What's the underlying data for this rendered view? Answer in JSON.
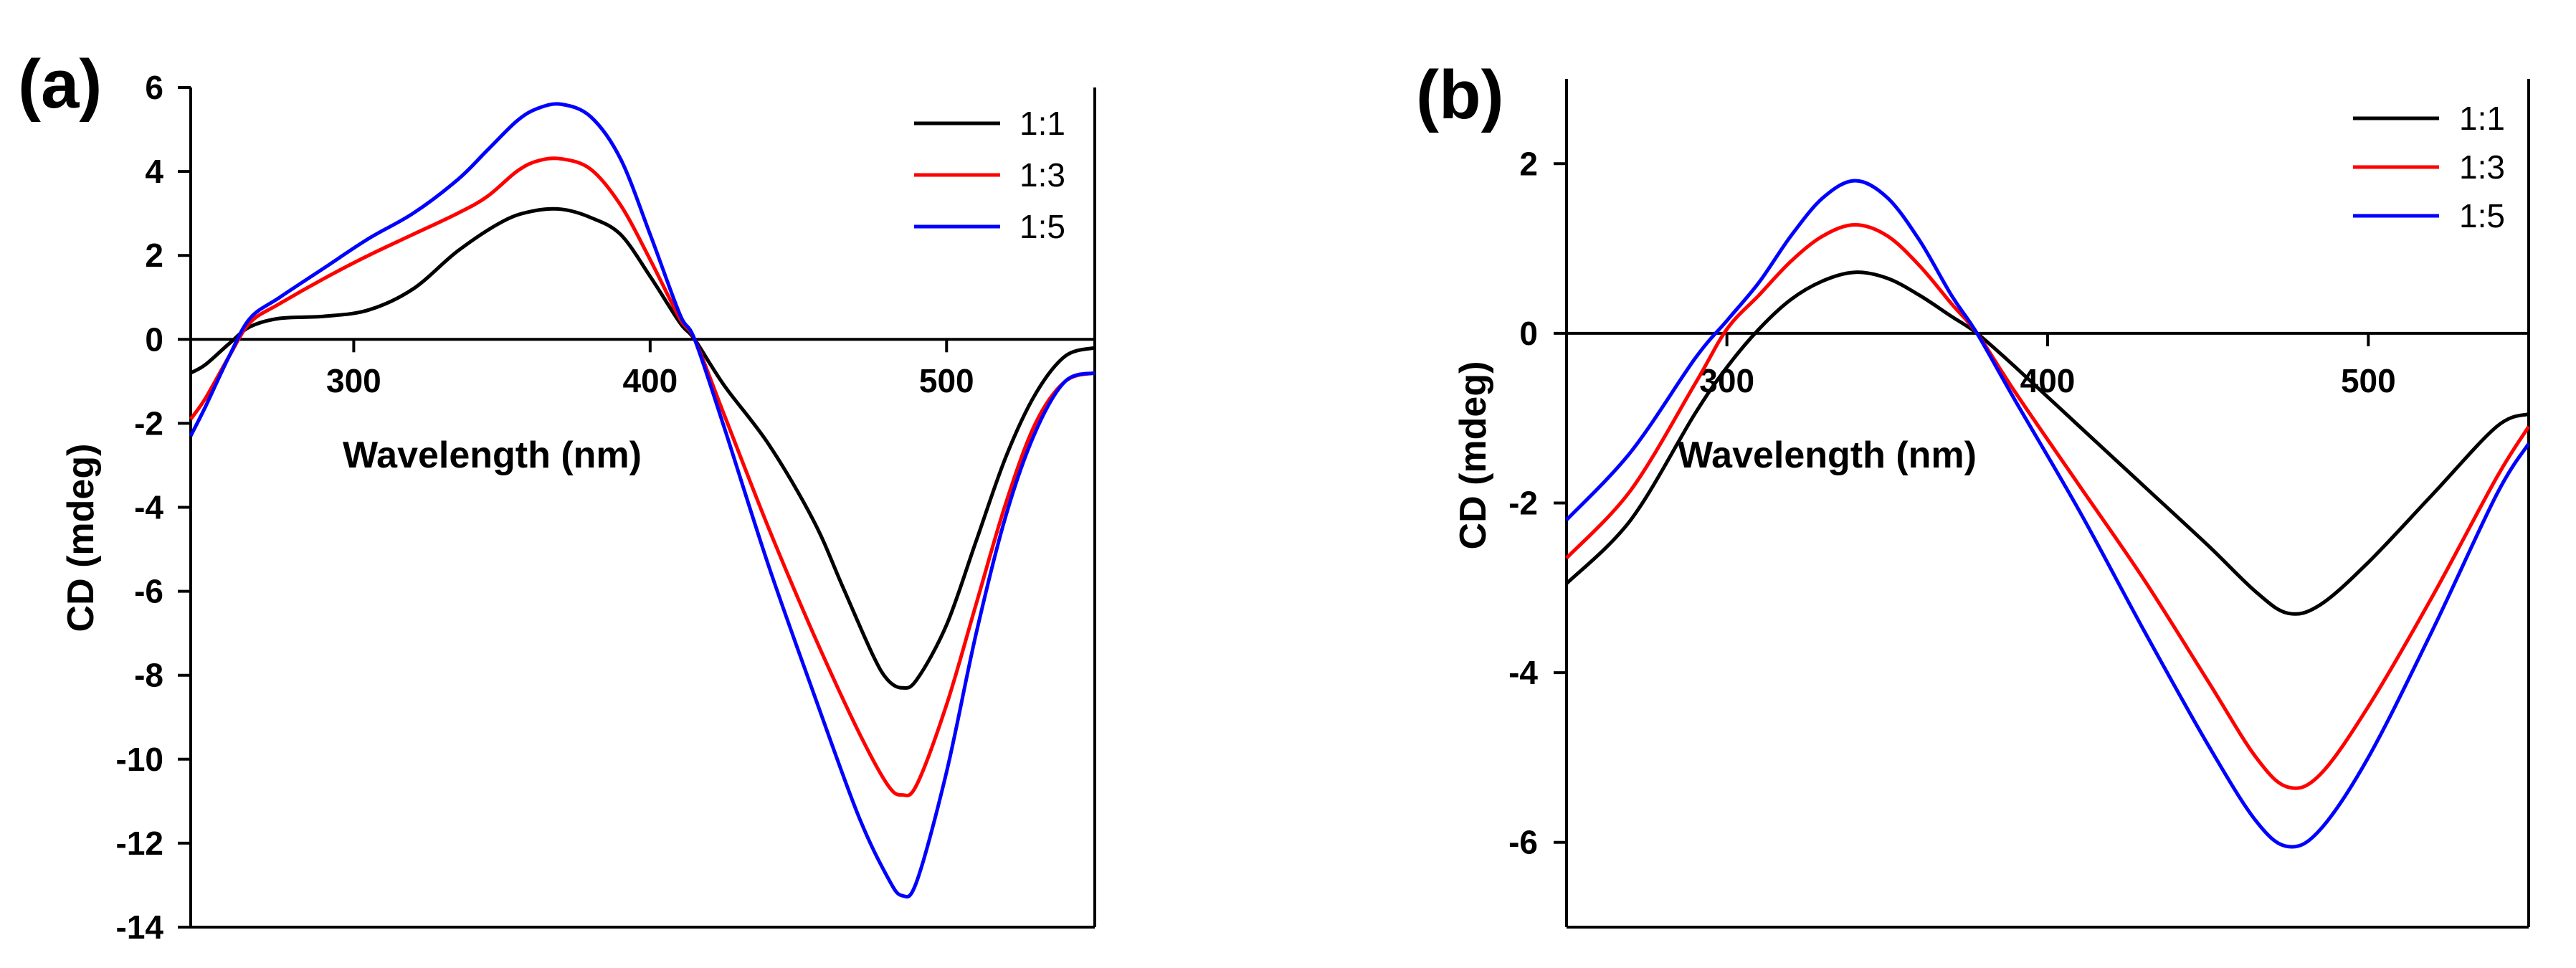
{
  "chart_data": [
    {
      "panel_label": "(a)",
      "type": "line",
      "xlabel": "Wavelength (nm)",
      "ylabel": "CD (mdeg)",
      "xlim": [
        245,
        550
      ],
      "ylim": [
        -14,
        6
      ],
      "xticks": [
        300,
        400,
        500
      ],
      "yticks": [
        -14,
        -12,
        -10,
        -8,
        -6,
        -4,
        -2,
        0,
        2,
        4,
        6
      ],
      "legend_position": "top-right",
      "series": [
        {
          "name": "1:1",
          "color": "#000000",
          "x": [
            245,
            250,
            258,
            265,
            275,
            290,
            305,
            320,
            335,
            350,
            360,
            370,
            380,
            390,
            400,
            410,
            415,
            425,
            440,
            455,
            465,
            475,
            480,
            485,
            490,
            500,
            510,
            520,
            530,
            540,
            550
          ],
          "y": [
            -0.8,
            -0.6,
            -0.1,
            0.3,
            0.5,
            0.55,
            0.7,
            1.2,
            2.1,
            2.8,
            3.05,
            3.1,
            2.9,
            2.5,
            1.5,
            0.4,
            0,
            -1.1,
            -2.5,
            -4.3,
            -5.9,
            -7.5,
            -8.1,
            -8.3,
            -8.1,
            -6.8,
            -4.8,
            -2.8,
            -1.3,
            -0.4,
            -0.2
          ]
        },
        {
          "name": "1:3",
          "color": "#ff0000",
          "x": [
            245,
            250,
            258,
            265,
            275,
            290,
            305,
            320,
            335,
            345,
            355,
            362,
            370,
            380,
            390,
            400,
            410,
            415,
            425,
            440,
            455,
            470,
            480,
            485,
            490,
            500,
            510,
            520,
            530,
            540,
            550
          ],
          "y": [
            -1.9,
            -1.4,
            -0.4,
            0.4,
            0.85,
            1.45,
            2.0,
            2.5,
            3.0,
            3.4,
            4.0,
            4.25,
            4.3,
            4.05,
            3.2,
            1.9,
            0.5,
            0,
            -1.8,
            -4.5,
            -7.0,
            -9.3,
            -10.6,
            -10.85,
            -10.6,
            -8.7,
            -6.3,
            -3.9,
            -2.0,
            -1.0,
            -0.8
          ]
        },
        {
          "name": "1:5",
          "color": "#0000ff",
          "x": [
            245,
            250,
            258,
            265,
            275,
            290,
            305,
            320,
            335,
            345,
            355,
            362,
            370,
            380,
            390,
            400,
            410,
            415,
            425,
            440,
            455,
            470,
            480,
            485,
            490,
            500,
            510,
            520,
            530,
            540,
            550
          ],
          "y": [
            -2.3,
            -1.6,
            -0.4,
            0.5,
            1.0,
            1.7,
            2.4,
            3.0,
            3.8,
            4.5,
            5.2,
            5.5,
            5.6,
            5.3,
            4.3,
            2.5,
            0.6,
            0,
            -2.1,
            -5.4,
            -8.4,
            -11.3,
            -12.8,
            -13.25,
            -12.9,
            -10.3,
            -7.0,
            -4.2,
            -2.2,
            -1.0,
            -0.8
          ]
        }
      ]
    },
    {
      "panel_label": "(b)",
      "type": "line",
      "xlabel": "Wavelength (nm)",
      "ylabel": "CD (mdeg)",
      "xlim": [
        250,
        550
      ],
      "ylim": [
        -7,
        3
      ],
      "xticks": [
        300,
        400,
        500
      ],
      "yticks": [
        -6,
        -4,
        -2,
        0,
        2
      ],
      "legend_position": "top-right",
      "series": [
        {
          "name": "1:1",
          "color": "#000000",
          "x": [
            250,
            270,
            290,
            300,
            310,
            320,
            330,
            340,
            350,
            360,
            370,
            378,
            390,
            410,
            430,
            450,
            465,
            475,
            485,
            500,
            520,
            540,
            550
          ],
          "y": [
            -2.95,
            -2.2,
            -0.95,
            -0.4,
            0.05,
            0.4,
            0.62,
            0.72,
            0.65,
            0.45,
            0.2,
            0,
            -0.4,
            -1.1,
            -1.8,
            -2.5,
            -3.05,
            -3.3,
            -3.2,
            -2.7,
            -1.9,
            -1.1,
            -0.95
          ]
        },
        {
          "name": "1:3",
          "color": "#ff0000",
          "x": [
            250,
            270,
            290,
            300,
            310,
            320,
            330,
            340,
            350,
            360,
            370,
            378,
            390,
            410,
            430,
            450,
            465,
            475,
            485,
            500,
            520,
            540,
            550
          ],
          "y": [
            -2.65,
            -1.85,
            -0.6,
            0.05,
            0.45,
            0.85,
            1.15,
            1.28,
            1.15,
            0.8,
            0.35,
            0,
            -0.7,
            -1.8,
            -2.9,
            -4.1,
            -5.0,
            -5.35,
            -5.2,
            -4.4,
            -3.1,
            -1.7,
            -1.1
          ]
        },
        {
          "name": "1:5",
          "color": "#0000ff",
          "x": [
            250,
            270,
            290,
            300,
            310,
            320,
            330,
            340,
            350,
            360,
            370,
            378,
            390,
            410,
            430,
            450,
            465,
            475,
            485,
            500,
            520,
            540,
            550
          ],
          "y": [
            -2.2,
            -1.4,
            -0.3,
            0.15,
            0.6,
            1.15,
            1.6,
            1.8,
            1.6,
            1.1,
            0.45,
            0,
            -0.8,
            -2.1,
            -3.5,
            -4.85,
            -5.75,
            -6.05,
            -5.85,
            -5.0,
            -3.5,
            -1.9,
            -1.3
          ]
        }
      ]
    }
  ]
}
